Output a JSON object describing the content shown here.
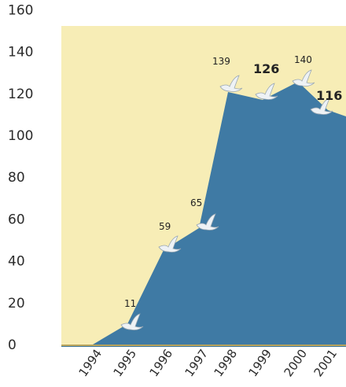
{
  "chart_data": {
    "type": "area",
    "x": [
      "1994",
      "1995",
      "1996",
      "1997",
      "1998",
      "1999",
      "2000",
      "2001"
    ],
    "yticks": [
      "0",
      "20",
      "40",
      "60",
      "80",
      "100",
      "120",
      "140",
      "160"
    ],
    "ylim": [
      0,
      160
    ],
    "grid": false,
    "series": [
      {
        "values": [
          0,
          11,
          59,
          65,
          139,
          126,
          140,
          116
        ],
        "labels": [
          "",
          "11",
          "59",
          "65",
          "139",
          "126",
          "140",
          "116"
        ]
      }
    ],
    "colors": {
      "background": "#f7edb6",
      "area": "#3f7aa4",
      "marker": "#eef2f5"
    },
    "marker_icon": "bird-icon"
  }
}
